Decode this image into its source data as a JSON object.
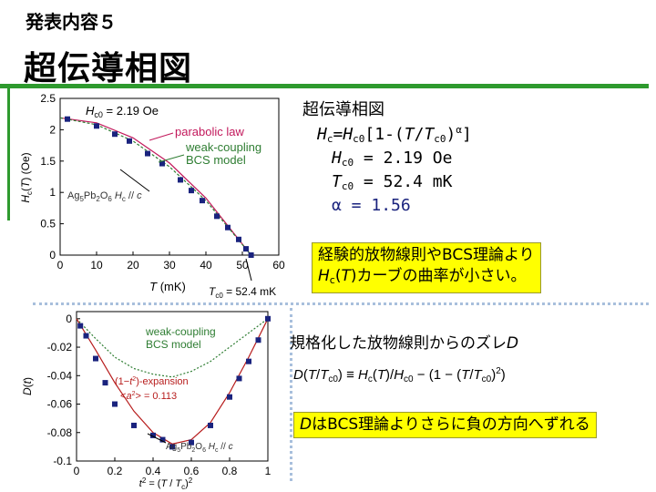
{
  "header": {
    "subheading": "発表内容５",
    "title": "超伝導相図"
  },
  "text_panel": {
    "heading": "超伝導相図",
    "formula": {
      "Hc": "H",
      "c_sub": "c",
      "eq": "=",
      "Hc0": "H",
      "c0_sub": "c0",
      "rest1": "[1-(",
      "T": "T",
      "slash": "/",
      "Tc0": "T",
      "tc0_sub": "c0",
      "close": ")",
      "alpha": "α",
      "rest2": "]"
    },
    "params": [
      {
        "sym": "H",
        "sub": "c0",
        "value": " = 2.19 Oe"
      },
      {
        "sym": "T",
        "sub": "c0",
        "value": " = 52.4 mK"
      },
      {
        "sym": "α",
        "sub": "",
        "value": " = 1.56"
      }
    ]
  },
  "note1": {
    "line1": "経験的放物線則やBCS理論より",
    "H": "H",
    "c": "c",
    "T": "T",
    "rest": ")カーブの曲率が小さい。"
  },
  "note2": {
    "prefix": "規格化した放物線則からのズレ",
    "D": "D"
  },
  "formula2": "D(T/Tc0) ≡ Hc(T)/Hc0 − (1 − (T/Tc0)²)",
  "note3": {
    "D": "D",
    "rest": "はBCS理論よりさらに負の方向へずれる"
  },
  "chart_data": [
    {
      "type": "scatter",
      "title": "",
      "xlabel": "T (mK)",
      "ylabel": "Hc(T) (Oe)",
      "xlim": [
        0,
        60
      ],
      "ylim": [
        0,
        2.5
      ],
      "xticks": [
        "0",
        "10",
        "20",
        "30",
        "40",
        "50",
        "60"
      ],
      "yticks": [
        "0",
        "0.5",
        "1",
        "1.5",
        "2",
        "2.5"
      ],
      "annotations": [
        "Hc0 = 2.19 Oe",
        "parabolic law",
        "weak-coupling",
        "BCS model",
        "Ag5Pb2O6 Hc // c",
        "Tc0 = 52.4 mK"
      ],
      "series": [
        {
          "name": "Ag5Pb2O6 Hc // c",
          "x": [
            2,
            10,
            15,
            19,
            24,
            28,
            33,
            36,
            39,
            43,
            46,
            49,
            51,
            52.4
          ],
          "y": [
            2.17,
            2.06,
            1.93,
            1.82,
            1.62,
            1.46,
            1.2,
            1.03,
            0.87,
            0.62,
            0.44,
            0.25,
            0.1,
            0.0
          ]
        },
        {
          "name": "parabolic law",
          "x": [
            0,
            10,
            20,
            30,
            40,
            52.4
          ],
          "y": [
            2.19,
            2.11,
            1.87,
            1.47,
            0.91,
            0.0
          ]
        },
        {
          "name": "weak-coupling BCS model",
          "x": [
            0,
            10,
            20,
            30,
            40,
            52.4
          ],
          "y": [
            2.19,
            2.08,
            1.82,
            1.41,
            0.87,
            0.0
          ]
        }
      ]
    },
    {
      "type": "scatter",
      "title": "",
      "xlabel": "t² = (T / Tc)²",
      "ylabel": "D(t)",
      "xlim": [
        0,
        1
      ],
      "ylim": [
        -0.1,
        0.005
      ],
      "xticks": [
        "0",
        "0.2",
        "0.4",
        "0.6",
        "0.8",
        "1"
      ],
      "yticks": [
        "0",
        "-0.02",
        "-0.04",
        "-0.06",
        "-0.08",
        "-0.1"
      ],
      "annotations": [
        "weak-coupling",
        "BCS model",
        "(1−t²)-expansion",
        "<a²> = 0.113",
        "Ag5Pb2O6 Hc // c"
      ],
      "series": [
        {
          "name": "Ag5Pb2O6 Hc // c",
          "x": [
            0.02,
            0.05,
            0.1,
            0.15,
            0.2,
            0.3,
            0.4,
            0.45,
            0.5,
            0.6,
            0.7,
            0.8,
            0.85,
            0.9,
            0.95,
            1.0
          ],
          "y": [
            -0.005,
            -0.012,
            -0.028,
            -0.045,
            -0.06,
            -0.075,
            -0.082,
            -0.085,
            -0.09,
            -0.087,
            -0.075,
            -0.055,
            -0.042,
            -0.03,
            -0.015,
            0.0
          ]
        },
        {
          "name": "weak-coupling BCS model",
          "x": [
            0,
            0.1,
            0.2,
            0.3,
            0.4,
            0.5,
            0.6,
            0.7,
            0.8,
            0.9,
            1.0
          ],
          "y": [
            0.0,
            -0.014,
            -0.027,
            -0.035,
            -0.039,
            -0.041,
            -0.037,
            -0.03,
            -0.02,
            -0.01,
            0.0
          ]
        },
        {
          "name": "(1−t²)-expansion",
          "x": [
            0,
            0.1,
            0.2,
            0.3,
            0.4,
            0.5,
            0.6,
            0.7,
            0.8,
            0.9,
            1.0
          ],
          "y": [
            0.0,
            -0.022,
            -0.045,
            -0.065,
            -0.08,
            -0.088,
            -0.085,
            -0.073,
            -0.052,
            -0.027,
            0.0
          ]
        }
      ]
    }
  ],
  "colors": {
    "accent_green": "#2e9a2e",
    "marker_navy": "#1a237e",
    "parabolic": "#c2185b",
    "bcs": "#2e7d32",
    "expansion": "#b71c1c",
    "note_bg": "#ffff00"
  }
}
